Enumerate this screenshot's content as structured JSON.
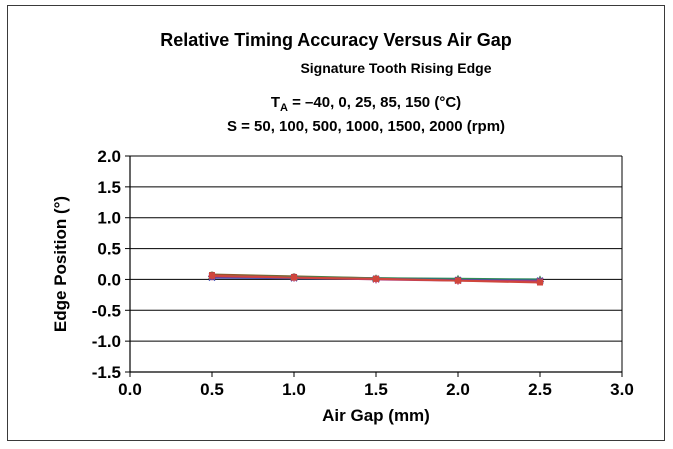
{
  "chart_data": {
    "type": "line",
    "title": "Relative Timing Accuracy Versus Air Gap",
    "subtitle": "Signature Tooth Rising Edge",
    "conditions": {
      "ta_symbol": "T",
      "ta_subscript": "A",
      "ta_values": " = –40, 0, 25, 85, 150 (°C)",
      "speed_line": "S = 50, 100, 500, 1000, 1500, 2000 (rpm)"
    },
    "xlabel": "Air Gap (mm)",
    "ylabel": "Edge Position (°)",
    "xlim": [
      0.0,
      3.0
    ],
    "ylim": [
      -1.5,
      2.0
    ],
    "x_ticks": [
      "0.0",
      "0.5",
      "1.0",
      "1.5",
      "2.0",
      "2.5",
      "3.0"
    ],
    "y_ticks": [
      "2.0",
      "1.5",
      "1.0",
      "0.5",
      "0.0",
      "-0.5",
      "-1.0",
      "-1.5"
    ],
    "x_tick_values": [
      0.0,
      0.5,
      1.0,
      1.5,
      2.0,
      2.5,
      3.0
    ],
    "y_tick_values": [
      2.0,
      1.5,
      1.0,
      0.5,
      0.0,
      -0.5,
      -1.0,
      -1.5
    ],
    "grid": "horizontal",
    "x": [
      0.5,
      1.0,
      1.5,
      2.0,
      2.5
    ],
    "series": [
      {
        "values": [
          0.08,
          0.05,
          0.02,
          0.0,
          -0.03
        ],
        "color": "#7a6a2a",
        "marker": "circle"
      },
      {
        "values": [
          0.07,
          0.04,
          0.01,
          -0.01,
          -0.04
        ],
        "color": "#c0392b",
        "marker": "square"
      },
      {
        "values": [
          0.06,
          0.04,
          0.02,
          0.01,
          0.0
        ],
        "color": "#2e8b57",
        "marker": "triangle"
      },
      {
        "values": [
          0.03,
          0.02,
          0.01,
          -0.01,
          -0.02
        ],
        "color": "#3b4bb0",
        "marker": "x"
      },
      {
        "values": [
          0.05,
          0.03,
          0.0,
          -0.02,
          -0.03
        ],
        "color": "#b03a78",
        "marker": "star"
      },
      {
        "values": [
          0.06,
          0.03,
          0.01,
          -0.02,
          -0.05
        ],
        "color": "#d0463c",
        "marker": "square"
      }
    ]
  }
}
